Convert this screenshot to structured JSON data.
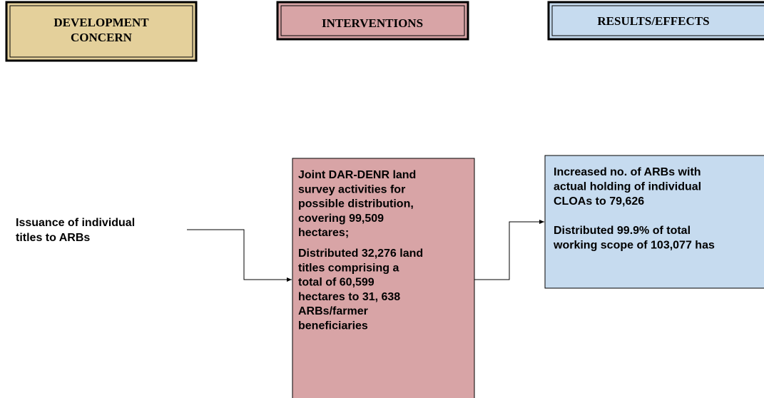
{
  "headers": [
    "DEVELOPMENT CONCERN",
    "INTERVENTIONS",
    "RESULTS/EFFECTS"
  ],
  "concern": {
    "lines": [
      "Issuance of individual",
      "titles to ARBs"
    ]
  },
  "interventions": {
    "paragraphs": [
      [
        "Joint DAR-DENR land",
        "survey activities for",
        "possible distribution,",
        "covering 99,509",
        "hectares;"
      ],
      [
        "Distributed 32,276 land",
        "titles comprising a",
        "total of 60,599",
        "hectares to 31, 638",
        "ARBs/farmer",
        "beneficiaries"
      ]
    ]
  },
  "results": {
    "paragraphs": [
      [
        "Increased no. of ARBs with",
        "actual holding of individual",
        "CLOAs to 79,626"
      ],
      [
        "Distributed 99.9% of total",
        "working scope of 103,077 has"
      ]
    ]
  }
}
